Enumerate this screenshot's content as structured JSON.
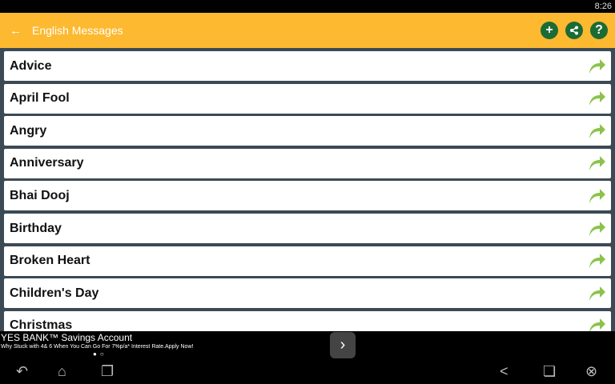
{
  "status": {
    "time": "8:26"
  },
  "appbar": {
    "title": "English Messages",
    "back_icon": "arrow-left-icon",
    "actions": [
      "add-icon",
      "share-icon",
      "help-icon"
    ],
    "color": "#fdb930",
    "action_color": "#1b6b34"
  },
  "items": [
    "Advice",
    "April Fool",
    "Angry",
    "Anniversary",
    "Bhai Dooj",
    "Birthday",
    "Broken Heart",
    "Children's Day",
    "Christmas"
  ],
  "ad": {
    "title": "YES BANK™ Savings Account",
    "text": "Why Stuck with 4& 6 When You Can Go For 7%p/a* Interest Rate.Apply Now!",
    "next": "›"
  },
  "nav": [
    "back-icon",
    "home-icon",
    "recents-icon",
    "share-icon",
    "window-icon",
    "close-icon"
  ]
}
